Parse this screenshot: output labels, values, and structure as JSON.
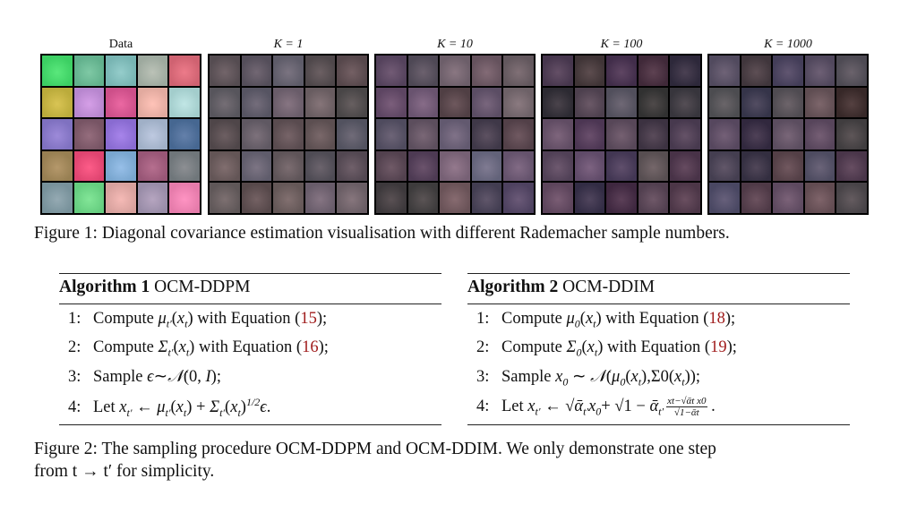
{
  "figure1": {
    "panels": [
      "Data",
      "K = 1",
      "K = 10",
      "K = 100",
      "K = 1000"
    ],
    "caption": "Figure 1: Diagonal covariance estimation visualisation with different Rademacher sample numbers."
  },
  "algorithms": [
    {
      "label": "Algorithm 1",
      "name": "OCM-DDPM",
      "steps": [
        {
          "num": "1:",
          "tokens": [
            {
              "t": "Compute "
            },
            {
              "m": "μ",
              "sub": "t′"
            },
            {
              "t": "("
            },
            {
              "m": "x",
              "sub": "t"
            },
            {
              "t": ") with Equation ("
            },
            {
              "ref": "15"
            },
            {
              "t": ");"
            }
          ]
        },
        {
          "num": "2:",
          "tokens": [
            {
              "t": "Compute "
            },
            {
              "m": "Σ",
              "sub": "t′"
            },
            {
              "t": "("
            },
            {
              "m": "x",
              "sub": "t"
            },
            {
              "t": ") with Equation ("
            },
            {
              "ref": "16"
            },
            {
              "t": ");"
            }
          ]
        },
        {
          "num": "3:",
          "tokens": [
            {
              "t": "Sample "
            },
            {
              "m": "ϵ"
            },
            {
              "t": "∼"
            },
            {
              "m": "𝒩"
            },
            {
              "t": "(0, "
            },
            {
              "m": "I"
            },
            {
              "t": ");"
            }
          ]
        },
        {
          "num": "4:",
          "tokens": [
            {
              "t": "Let "
            },
            {
              "m": "x",
              "sub": "t′"
            },
            {
              "t": " ← "
            },
            {
              "m": "μ",
              "sub": "t′"
            },
            {
              "t": "("
            },
            {
              "m": "x",
              "sub": "t"
            },
            {
              "t": ") + "
            },
            {
              "m": "Σ",
              "sub": "t′"
            },
            {
              "t": "("
            },
            {
              "m": "x",
              "sub": "t"
            },
            {
              "t": ")",
              "sup": "1/2"
            },
            {
              "m": "ϵ"
            },
            {
              "t": "."
            }
          ]
        }
      ]
    },
    {
      "label": "Algorithm 2",
      "name": "OCM-DDIM",
      "steps": [
        {
          "num": "1:",
          "tokens": [
            {
              "t": "Compute "
            },
            {
              "m": "μ",
              "sub": "0"
            },
            {
              "t": "("
            },
            {
              "m": "x",
              "sub": "t"
            },
            {
              "t": ") with Equation ("
            },
            {
              "ref": "18"
            },
            {
              "t": ");"
            }
          ]
        },
        {
          "num": "2:",
          "tokens": [
            {
              "t": "Compute "
            },
            {
              "m": "Σ",
              "sub": "0"
            },
            {
              "t": "("
            },
            {
              "m": "x",
              "sub": "t"
            },
            {
              "t": ") with Equation ("
            },
            {
              "ref": "19"
            },
            {
              "t": ");"
            }
          ]
        },
        {
          "num": "3:",
          "tokens": [
            {
              "t": "Sample "
            },
            {
              "m": "x",
              "sub": "0"
            },
            {
              "t": " ∼ "
            },
            {
              "m": "𝒩"
            },
            {
              "t": "("
            },
            {
              "m": "μ",
              "sub": "0"
            },
            {
              "t": "("
            },
            {
              "m": "x",
              "sub": "t"
            },
            {
              "t": "),Σ"
            },
            {
              "t": "0"
            },
            {
              "t": "("
            },
            {
              "m": "x",
              "sub": "t"
            },
            {
              "t": "));"
            }
          ]
        },
        {
          "num": "4:",
          "tokens": [
            {
              "t": "Let "
            },
            {
              "m": "x",
              "sub": "t′"
            },
            {
              "t": " ← √"
            },
            {
              "m": "ᾱ",
              "sub": "t′"
            },
            {
              "m": "x",
              "sub": "0"
            },
            {
              "t": "+ √1 − "
            },
            {
              "m": "ᾱ",
              "sub": "t′"
            },
            {
              "num": "xt−√ᾱt x0",
              "den": "√1−ᾱt"
            },
            {
              "t": " ."
            }
          ]
        }
      ]
    }
  ],
  "figure2": {
    "caption_lines": [
      "Figure 2: The sampling procedure OCM-DDPM and OCM-DDIM. We only demonstrate one step",
      "from t → t′ for simplicity."
    ]
  }
}
